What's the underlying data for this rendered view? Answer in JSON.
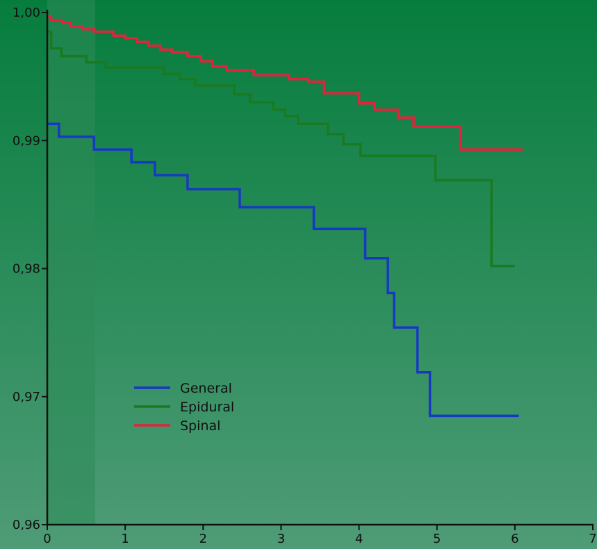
{
  "chart_data": {
    "type": "line",
    "step": true,
    "xlim": [
      0,
      7
    ],
    "ylim": [
      0.96,
      1.0
    ],
    "x_ticks": [
      "0",
      "1",
      "2",
      "3",
      "4",
      "5",
      "6",
      "7"
    ],
    "y_ticks": [
      "0,96",
      "0,97",
      "0,98",
      "0,99",
      "1,00"
    ],
    "legend_position": "lower-left",
    "background": {
      "top": "#067d3d",
      "bottom": "#4f9c77",
      "band": "#2e8a58"
    },
    "series": [
      {
        "name": "General",
        "color": "#1738c4",
        "points": [
          [
            0,
            0.9913
          ],
          [
            0.15,
            0.9903
          ],
          [
            0.6,
            0.9893
          ],
          [
            1.08,
            0.9883
          ],
          [
            1.38,
            0.9873
          ],
          [
            1.8,
            0.9862
          ],
          [
            2.47,
            0.9848
          ],
          [
            3.42,
            0.9831
          ],
          [
            4.08,
            0.9808
          ],
          [
            4.37,
            0.9781
          ],
          [
            4.45,
            0.9754
          ],
          [
            4.75,
            0.9719
          ],
          [
            4.91,
            0.9685
          ],
          [
            6.05,
            0.9685
          ]
        ]
      },
      {
        "name": "Epidural",
        "color": "#1a7a22",
        "points": [
          [
            0,
            0.9985
          ],
          [
            0.05,
            0.9972
          ],
          [
            0.18,
            0.9966
          ],
          [
            0.5,
            0.9961
          ],
          [
            0.75,
            0.9957
          ],
          [
            1.5,
            0.9952
          ],
          [
            1.7,
            0.9948
          ],
          [
            1.9,
            0.9943
          ],
          [
            2.4,
            0.9936
          ],
          [
            2.6,
            0.993
          ],
          [
            2.9,
            0.9924
          ],
          [
            3.05,
            0.9919
          ],
          [
            3.22,
            0.9913
          ],
          [
            3.6,
            0.9905
          ],
          [
            3.8,
            0.9897
          ],
          [
            4.02,
            0.9888
          ],
          [
            4.98,
            0.9869
          ],
          [
            5.7,
            0.9802
          ],
          [
            6.0,
            0.9802
          ]
        ]
      },
      {
        "name": "Spinal",
        "color": "#e0243d",
        "points": [
          [
            0,
            0.9997
          ],
          [
            0.05,
            0.9994
          ],
          [
            0.2,
            0.9992
          ],
          [
            0.3,
            0.9989
          ],
          [
            0.45,
            0.9987
          ],
          [
            0.6,
            0.9985
          ],
          [
            0.85,
            0.9982
          ],
          [
            1.0,
            0.998
          ],
          [
            1.15,
            0.9977
          ],
          [
            1.3,
            0.9974
          ],
          [
            1.45,
            0.9971
          ],
          [
            1.6,
            0.9969
          ],
          [
            1.8,
            0.9966
          ],
          [
            1.97,
            0.9962
          ],
          [
            2.12,
            0.9958
          ],
          [
            2.3,
            0.9955
          ],
          [
            2.65,
            0.9951
          ],
          [
            3.1,
            0.9948
          ],
          [
            3.35,
            0.9946
          ],
          [
            3.55,
            0.9937
          ],
          [
            4.0,
            0.9929
          ],
          [
            4.2,
            0.9924
          ],
          [
            4.5,
            0.9918
          ],
          [
            4.7,
            0.9911
          ],
          [
            5.3,
            0.9893
          ],
          [
            6.1,
            0.9893
          ]
        ]
      }
    ]
  }
}
